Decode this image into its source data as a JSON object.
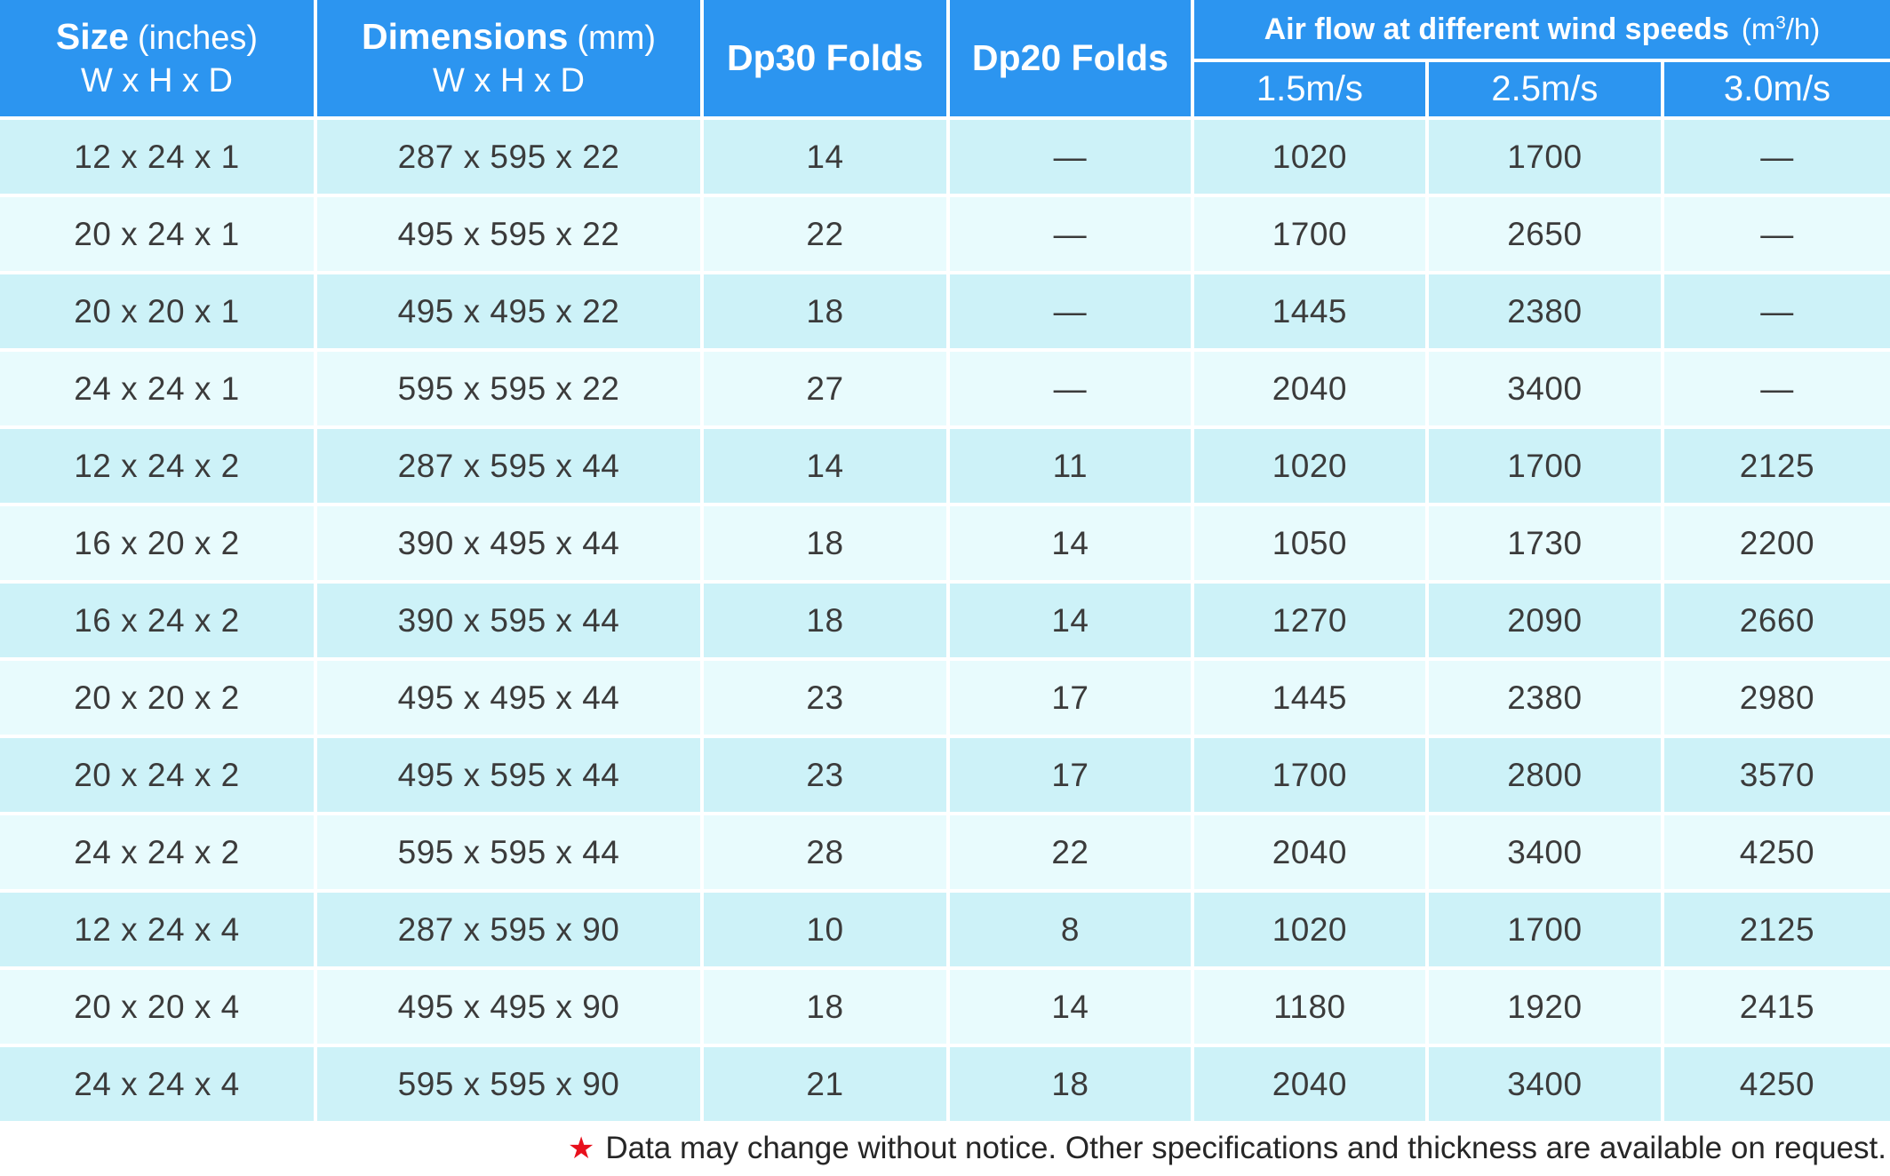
{
  "table": {
    "header": {
      "size": {
        "title": "Size",
        "unit": "(inches)",
        "sub": "W x H x D"
      },
      "dimensions": {
        "title": "Dimensions",
        "unit": "(mm)",
        "sub": "W x H x D"
      },
      "dp30_label": "Dp30 Folds",
      "dp20_label": "Dp20 Folds",
      "airflow": {
        "title": "Air flow at different wind speeds",
        "unit_open": "(m",
        "unit_sup": "3",
        "unit_close": "/h)",
        "speeds": [
          "1.5m/s",
          "2.5m/s",
          "3.0m/s"
        ]
      }
    },
    "rows": [
      {
        "size": "12 x 24 x 1",
        "dimensions": "287 x 595 x 22",
        "dp30": "14",
        "dp20": "—",
        "flow_15": "1020",
        "flow_25": "1700",
        "flow_30": "—"
      },
      {
        "size": "20 x 24 x 1",
        "dimensions": "495 x 595 x 22",
        "dp30": "22",
        "dp20": "—",
        "flow_15": "1700",
        "flow_25": "2650",
        "flow_30": "—"
      },
      {
        "size": "20 x 20 x 1",
        "dimensions": "495 x 495 x 22",
        "dp30": "18",
        "dp20": "—",
        "flow_15": "1445",
        "flow_25": "2380",
        "flow_30": "—"
      },
      {
        "size": "24 x 24 x 1",
        "dimensions": "595 x 595 x 22",
        "dp30": "27",
        "dp20": "—",
        "flow_15": "2040",
        "flow_25": "3400",
        "flow_30": "—"
      },
      {
        "size": "12 x 24 x 2",
        "dimensions": "287 x 595 x 44",
        "dp30": "14",
        "dp20": "11",
        "flow_15": "1020",
        "flow_25": "1700",
        "flow_30": "2125"
      },
      {
        "size": "16 x 20 x 2",
        "dimensions": "390 x 495 x 44",
        "dp30": "18",
        "dp20": "14",
        "flow_15": "1050",
        "flow_25": "1730",
        "flow_30": "2200"
      },
      {
        "size": "16 x 24 x 2",
        "dimensions": "390 x 595 x 44",
        "dp30": "18",
        "dp20": "14",
        "flow_15": "1270",
        "flow_25": "2090",
        "flow_30": "2660"
      },
      {
        "size": "20 x 20 x 2",
        "dimensions": "495 x 495 x 44",
        "dp30": "23",
        "dp20": "17",
        "flow_15": "1445",
        "flow_25": "2380",
        "flow_30": "2980"
      },
      {
        "size": "20 x 24 x 2",
        "dimensions": "495 x 595 x 44",
        "dp30": "23",
        "dp20": "17",
        "flow_15": "1700",
        "flow_25": "2800",
        "flow_30": "3570"
      },
      {
        "size": "24 x 24 x 2",
        "dimensions": "595 x 595 x 44",
        "dp30": "28",
        "dp20": "22",
        "flow_15": "2040",
        "flow_25": "3400",
        "flow_30": "4250"
      },
      {
        "size": "12 x 24 x 4",
        "dimensions": "287 x 595 x 90",
        "dp30": "10",
        "dp20": "8",
        "flow_15": "1020",
        "flow_25": "1700",
        "flow_30": "2125"
      },
      {
        "size": "20 x 20 x 4",
        "dimensions": "495 x 495 x 90",
        "dp30": "18",
        "dp20": "14",
        "flow_15": "1180",
        "flow_25": "1920",
        "flow_30": "2415"
      },
      {
        "size": "24 x 24 x 4",
        "dimensions": "595 x 595 x 90",
        "dp30": "21",
        "dp20": "18",
        "flow_15": "2040",
        "flow_25": "3400",
        "flow_30": "4250"
      }
    ]
  },
  "footnote": {
    "star": "★",
    "text": "Data may change without notice. Other specifications and thickness are available on request."
  },
  "colors": {
    "header_blue": "#2c95f0",
    "header_text": "#ffffff",
    "row_dark": "#cdf2f8",
    "row_light": "#e8fbfd",
    "text_dark": "#3b3b3b",
    "star_red": "#e8101c"
  }
}
